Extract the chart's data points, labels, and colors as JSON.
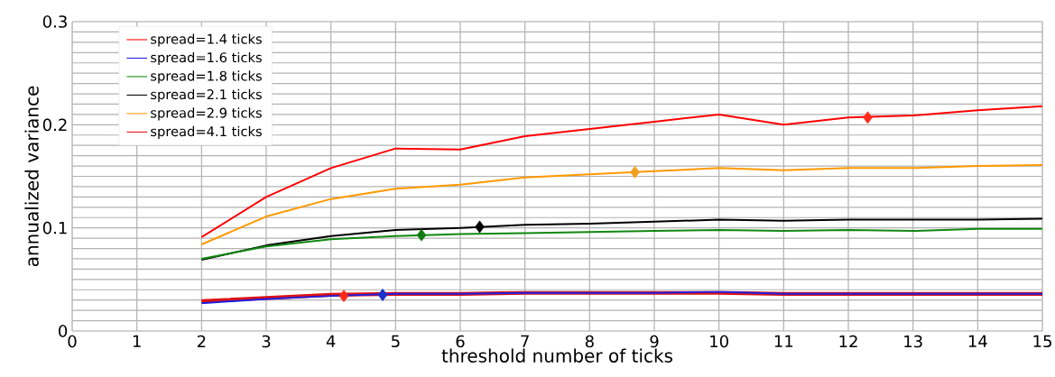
{
  "chart_data": {
    "type": "line",
    "xlabel": "threshold number of ticks",
    "ylabel": "annualized variance",
    "x": [
      2,
      3,
      4,
      5,
      6,
      7,
      8,
      9,
      10,
      11,
      12,
      13,
      14,
      15
    ],
    "xlim": [
      0,
      15
    ],
    "xticks": [
      0,
      1,
      2,
      3,
      4,
      5,
      6,
      7,
      8,
      9,
      10,
      11,
      12,
      13,
      14,
      15
    ],
    "ylim": [
      0,
      0.3
    ],
    "yticks": [
      0,
      {
        "value": 0.01,
        "label": null
      },
      {
        "value": 0.02,
        "label": null
      },
      {
        "value": 0.03,
        "label": null
      },
      {
        "value": 0.04,
        "label": null
      },
      {
        "value": 0.05,
        "label": null
      },
      {
        "value": 0.06,
        "label": null
      },
      {
        "value": 0.07,
        "label": null
      },
      {
        "value": 0.08,
        "label": null
      },
      {
        "value": 0.09,
        "label": null
      },
      0.1,
      {
        "value": 0.11,
        "label": null
      },
      {
        "value": 0.12,
        "label": null
      },
      {
        "value": 0.13,
        "label": null
      },
      {
        "value": 0.14,
        "label": null
      },
      {
        "value": 0.15,
        "label": null
      },
      {
        "value": 0.16,
        "label": null
      },
      {
        "value": 0.17,
        "label": null
      },
      {
        "value": 0.18,
        "label": null
      },
      {
        "value": 0.19,
        "label": null
      },
      0.2,
      {
        "value": 0.21,
        "label": null
      },
      {
        "value": 0.22,
        "label": null
      },
      {
        "value": 0.23,
        "label": null
      },
      {
        "value": 0.24,
        "label": null
      },
      {
        "value": 0.25,
        "label": null
      },
      {
        "value": 0.26,
        "label": null
      },
      {
        "value": 0.27,
        "label": null
      },
      {
        "value": 0.28,
        "label": null
      },
      {
        "value": 0.29,
        "label": null
      },
      0.3
    ],
    "grid": true,
    "legend": "top left",
    "marker": "none",
    "line_style": "solid",
    "series": [
      {
        "name": "spread=1.4 ticks",
        "color": "#ff0000",
        "values": [
          0.091,
          0.13,
          0.158,
          0.177,
          0.176,
          0.189,
          0.196,
          0.203,
          0.21,
          0.2,
          0.207,
          0.209,
          0.214,
          0.218
        ]
      },
      {
        "name": "spread=1.6 ticks",
        "color": "#2020e0",
        "values": [
          0.027,
          0.031,
          0.034,
          0.036,
          0.036,
          0.037,
          0.037,
          0.037,
          0.038,
          0.036,
          0.036,
          0.036,
          0.036,
          0.036
        ]
      },
      {
        "name": "spread=1.8 ticks",
        "color": "#118811",
        "values": [
          0.07,
          0.082,
          0.089,
          0.092,
          0.094,
          0.095,
          0.096,
          0.097,
          0.098,
          0.097,
          0.098,
          0.097,
          0.099,
          0.099
        ]
      },
      {
        "name": "spread=2.1 ticks",
        "color": "#000000",
        "values": [
          0.069,
          0.083,
          0.092,
          0.098,
          0.1,
          0.103,
          0.104,
          0.106,
          0.108,
          0.107,
          0.108,
          0.108,
          0.108,
          0.109
        ]
      },
      {
        "name": "spread=2.9 ticks",
        "color": "#ff9900",
        "values": [
          0.084,
          0.111,
          0.128,
          0.138,
          0.142,
          0.149,
          0.152,
          0.155,
          0.158,
          0.156,
          0.158,
          0.158,
          0.16,
          0.161
        ]
      },
      {
        "name": "spread=4.1 ticks",
        "color": "#dd1111",
        "values": [
          0.029,
          0.032,
          0.035,
          0.036,
          0.036,
          0.037,
          0.037,
          0.037,
          0.037,
          0.036,
          0.036,
          0.036,
          0.036,
          0.036
        ]
      },
      {
        "type": "scatter",
        "marker": "diamond",
        "x": [
          12.3,
          4.2,
          8.7,
          6.3,
          5.4,
          4.8
        ],
        "values": [
          0.207,
          0.034,
          0.154,
          0.101,
          0.093,
          0.035
        ],
        "colors": [
          "#ff2a1a",
          "#ff2a1a",
          "#f0a020",
          "#000000",
          "#127a12",
          "#1a33cc"
        ]
      }
    ]
  }
}
